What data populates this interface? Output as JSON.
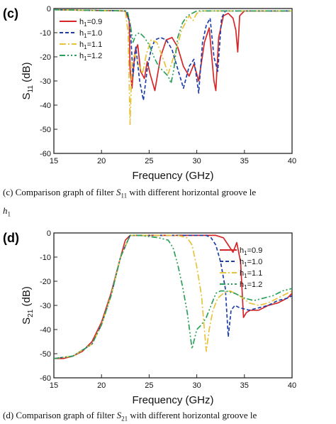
{
  "captions": {
    "c_prefix": "(c) Comparison graph of filter",
    "c_symbol": "S",
    "c_sub": "11",
    "c_suffix": "with different horizontal groove le",
    "c_line2": "h",
    "c_line2_sub": "1",
    "d_prefix": "(d) Comparison graph of filter",
    "d_symbol": "S",
    "d_sub": "21",
    "d_suffix": "with different horizontal groove le"
  },
  "chart_data": [
    {
      "type": "line",
      "panel": "(c)",
      "xlabel": "Frequency (GHz)",
      "ylabel": "S11 (dB)",
      "xlim": [
        15,
        40
      ],
      "ylim": [
        -60,
        0
      ],
      "xticks": [
        15,
        20,
        25,
        30,
        35,
        40
      ],
      "yticks": [
        0,
        -10,
        -20,
        -30,
        -40,
        -50,
        -60
      ],
      "legend_position": "upper-left",
      "series": [
        {
          "name": "h1=0.9",
          "color": "#d62728",
          "dash": "solid",
          "x": [
            15,
            22.5,
            22.9,
            23.0,
            23.2,
            23.5,
            23.8,
            24.1,
            24.5,
            24.8,
            25.1,
            25.6,
            26.2,
            26.8,
            27.4,
            28.0,
            28.6,
            29.2,
            29.7,
            30.2,
            30.8,
            31.3,
            31.8,
            32.0,
            32.3,
            32.8,
            33.3,
            33.8,
            34.1,
            34.3,
            34.5,
            35.0,
            36,
            38,
            40
          ],
          "y": [
            -0.5,
            -1,
            -5,
            -25,
            -33,
            -18,
            -15,
            -26,
            -29,
            -22,
            -27,
            -34,
            -20,
            -13,
            -12,
            -16,
            -24,
            -28,
            -23,
            -30,
            -14,
            -8,
            -30,
            -34,
            -12,
            -3,
            -2,
            -4,
            -9,
            -18,
            -3,
            -1,
            -1,
            -1,
            -1
          ]
        },
        {
          "name": "h1=1.0",
          "color": "#1f3fa8",
          "dash": "dashed",
          "x": [
            15,
            22.6,
            23.0,
            23.3,
            23.6,
            24.0,
            24.4,
            24.8,
            25.2,
            25.6,
            26.2,
            26.8,
            27.4,
            28.0,
            28.6,
            29.2,
            29.7,
            30.2,
            30.6,
            31.0,
            31.4,
            31.8,
            32.2,
            32.6,
            33.0,
            33.5,
            34,
            36,
            38,
            40
          ],
          "y": [
            -0.5,
            -1,
            -6,
            -28,
            -16,
            -30,
            -38,
            -25,
            -17,
            -13,
            -12,
            -13,
            -17,
            -25,
            -33,
            -24,
            -21,
            -35,
            -14,
            -7,
            -4,
            -20,
            -26,
            -4,
            -1,
            -1,
            -1,
            -1,
            -1,
            -1
          ]
        },
        {
          "name": "h1=1.1",
          "color": "#e8c23a",
          "dash": "dashdot",
          "x": [
            15,
            22.5,
            22.8,
            23.0,
            23.2,
            23.5,
            23.9,
            24.3,
            24.7,
            25.2,
            25.8,
            26.4,
            27.0,
            27.5,
            28.0,
            28.4,
            28.8,
            29.2,
            29.6,
            30.0,
            30.5,
            31,
            32,
            34,
            36,
            38,
            40
          ],
          "y": [
            -0.5,
            -1,
            -10,
            -48,
            -22,
            -19,
            -23,
            -27,
            -19,
            -13,
            -14,
            -20,
            -27,
            -21,
            -15,
            -9,
            -6,
            -3,
            -5,
            -2,
            -1,
            -1,
            -1,
            -1,
            -1,
            -1,
            -1
          ]
        },
        {
          "name": "h1=1.2",
          "color": "#2ca05a",
          "dash": "dashdotdot",
          "x": [
            15,
            22.7,
            23.0,
            23.3,
            23.6,
            24.0,
            24.5,
            25.0,
            25.5,
            26.0,
            26.5,
            27.0,
            27.3,
            27.6,
            28.0,
            28.5,
            29,
            30,
            32,
            34,
            36,
            38,
            40
          ],
          "y": [
            -0.5,
            -1,
            -6,
            -14,
            -11,
            -10,
            -12,
            -15,
            -20,
            -24,
            -26,
            -28,
            -31,
            -25,
            -12,
            -6,
            -3,
            -1,
            -1,
            -1,
            -1,
            -1,
            -1
          ]
        }
      ]
    },
    {
      "type": "line",
      "panel": "(d)",
      "xlabel": "Frequency (GHz)",
      "ylabel": "S21 (dB)",
      "xlim": [
        15,
        40
      ],
      "ylim": [
        -60,
        0
      ],
      "xticks": [
        15,
        20,
        25,
        30,
        35,
        40
      ],
      "yticks": [
        0,
        -10,
        -20,
        -30,
        -40,
        -50,
        -60
      ],
      "legend_position": "right",
      "series": [
        {
          "name": "h1=0.9",
          "color": "#d62728",
          "dash": "solid",
          "x": [
            15,
            16,
            17,
            18,
            19,
            20,
            21,
            22,
            22.5,
            23.0,
            23.5,
            24,
            26,
            28,
            30,
            31,
            32,
            32.8,
            33.3,
            33.8,
            34.2,
            34.6,
            34.9,
            35.2,
            35.6,
            36.5,
            37.5,
            38.5,
            39.5,
            40
          ],
          "y": [
            -52,
            -52,
            -51,
            -49,
            -45,
            -37,
            -25,
            -10,
            -3,
            -1,
            -1,
            -1,
            -1,
            -1,
            -1,
            -1,
            -1,
            -2,
            -5,
            -8,
            -4,
            -12,
            -35,
            -33,
            -32,
            -32,
            -30,
            -29,
            -27,
            -25
          ]
        },
        {
          "name": "h1=1.0",
          "color": "#1f3fa8",
          "dash": "dashed",
          "x": [
            15,
            17,
            19,
            20,
            21,
            22,
            23,
            24,
            26,
            28,
            30,
            31,
            31.5,
            32.0,
            32.5,
            33.0,
            33.3,
            33.6,
            34.0,
            34.5,
            35.5,
            36.5,
            37.5,
            38.5,
            39.5,
            40
          ],
          "y": [
            -52,
            -51,
            -46,
            -38,
            -26,
            -10,
            -1,
            -1,
            -1,
            -1,
            -1,
            -1,
            -2,
            -5,
            -12,
            -23,
            -43,
            -32,
            -30,
            -31,
            -32,
            -31,
            -30,
            -28,
            -27,
            -26
          ]
        },
        {
          "name": "h1=1.1",
          "color": "#e8c23a",
          "dash": "dashdot",
          "x": [
            15,
            17,
            19,
            20,
            21,
            22,
            23,
            24,
            26,
            28,
            29,
            29.5,
            30.0,
            30.5,
            31.0,
            31.3,
            31.7,
            32.2,
            32.8,
            33.5,
            34.5,
            35.5,
            36.5,
            37.5,
            38.5,
            39.5,
            40
          ],
          "y": [
            -52,
            -51,
            -46,
            -38,
            -26,
            -10,
            -1,
            -1,
            -1,
            -1,
            -2,
            -5,
            -14,
            -26,
            -49,
            -40,
            -32,
            -27,
            -25,
            -24,
            -26,
            -29,
            -30,
            -29,
            -27,
            -25,
            -24
          ]
        },
        {
          "name": "h1=1.2",
          "color": "#2ca05a",
          "dash": "dashdotdot",
          "x": [
            15,
            17,
            19,
            20,
            21,
            22,
            23,
            24,
            26,
            27,
            27.5,
            28.0,
            28.5,
            29.0,
            29.5,
            30.0,
            30.5,
            31.0,
            31.5,
            32.0,
            32.5,
            33,
            34,
            35,
            36,
            37,
            38,
            39,
            40
          ],
          "y": [
            -52,
            -51,
            -46,
            -38,
            -26,
            -10,
            -1,
            -1,
            -2,
            -3,
            -6,
            -13,
            -22,
            -33,
            -48,
            -40,
            -38,
            -35,
            -30,
            -25,
            -24,
            -24,
            -25,
            -27,
            -28,
            -27,
            -26,
            -24,
            -23
          ]
        }
      ]
    }
  ]
}
